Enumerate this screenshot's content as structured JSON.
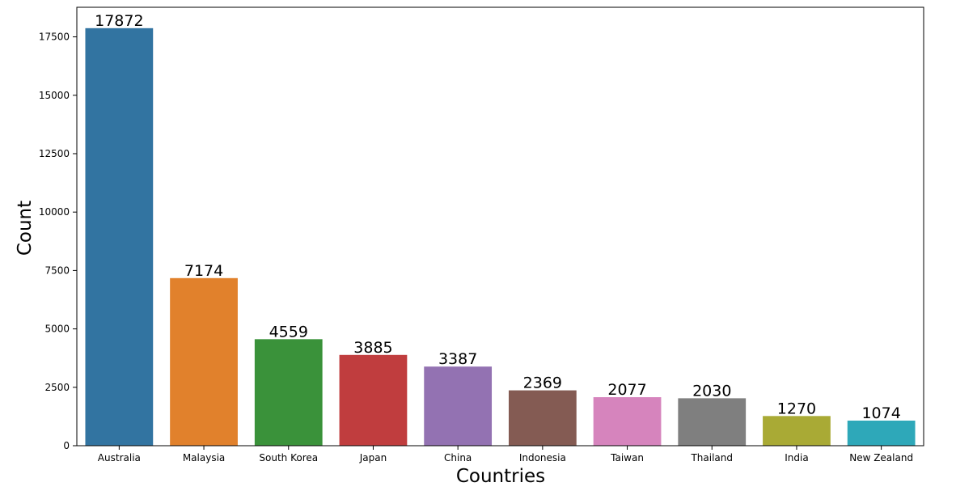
{
  "chart_data": {
    "type": "bar",
    "title": "",
    "xlabel": "Countries",
    "ylabel": "Count",
    "categories": [
      "Australia",
      "Malaysia",
      "South Korea",
      "Japan",
      "China",
      "Indonesia",
      "Taiwan",
      "Thailand",
      "India",
      "New Zealand"
    ],
    "values": [
      17872,
      7174,
      4559,
      3885,
      3387,
      2369,
      2077,
      2030,
      1270,
      1074
    ],
    "value_labels": [
      "17872",
      "7174",
      "4559",
      "3885",
      "3387",
      "2369",
      "2077",
      "2030",
      "1270",
      "1074"
    ],
    "colors": [
      "#3274a1",
      "#e1812c",
      "#3a923a",
      "#c03d3e",
      "#9372b2",
      "#845b53",
      "#d684bd",
      "#7f7f7f",
      "#a9aa35",
      "#2ea8b9"
    ],
    "yticks": [
      0,
      2500,
      5000,
      7500,
      10000,
      12500,
      15000,
      17500
    ],
    "ytick_labels": [
      "0",
      "2500",
      "5000",
      "7500",
      "10000",
      "12500",
      "15000",
      "17500"
    ],
    "ylim": [
      0,
      18766
    ],
    "grid": false,
    "legend": "none"
  }
}
